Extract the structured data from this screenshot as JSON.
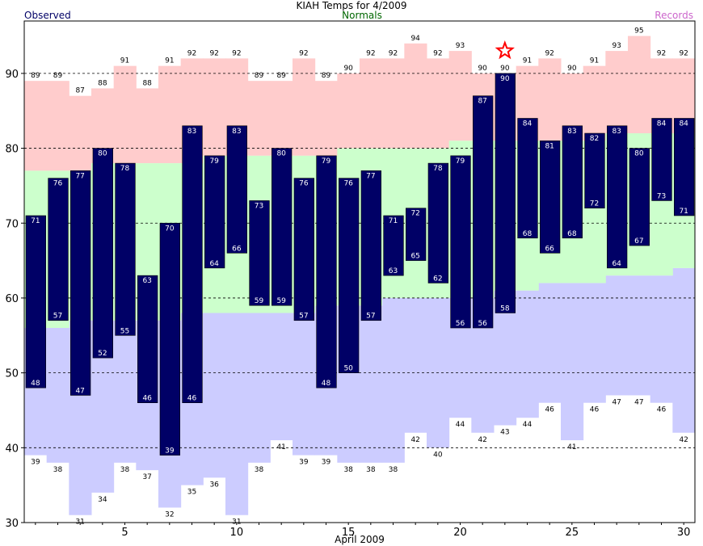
{
  "title": "KIAH Temps for 4/2009",
  "legend": {
    "observed": "Observed",
    "normals": "Normals",
    "records": "Records"
  },
  "colors": {
    "observed_bar": "#000066",
    "observed_text": "#000066",
    "normals_fill": "#ccffcc",
    "normals_text": "#006600",
    "record_high_fill": "#ffcccc",
    "record_low_fill": "#ccccff",
    "records_text": "#cc66cc",
    "star": "#ff0000"
  },
  "chart_data": {
    "type": "bar",
    "title": "KIAH Temps for 4/2009",
    "xlabel": "April 2009",
    "ylabel": "",
    "ylim": [
      30,
      97
    ],
    "xlim": [
      0.5,
      30.5
    ],
    "x_ticks": [
      5,
      10,
      15,
      20,
      25,
      30
    ],
    "y_ticks": [
      30,
      40,
      50,
      60,
      70,
      80,
      90
    ],
    "grid": "dashed horizontal lines at 40, 50, 60, 70, 80, 90",
    "days": [
      1,
      2,
      3,
      4,
      5,
      6,
      7,
      8,
      9,
      10,
      11,
      12,
      13,
      14,
      15,
      16,
      17,
      18,
      19,
      20,
      21,
      22,
      23,
      24,
      25,
      26,
      27,
      28,
      29,
      30
    ],
    "observed_high": [
      71,
      76,
      77,
      80,
      78,
      63,
      70,
      83,
      79,
      83,
      73,
      80,
      76,
      79,
      76,
      77,
      71,
      72,
      78,
      79,
      87,
      90,
      84,
      81,
      83,
      82,
      83,
      80,
      84,
      84
    ],
    "observed_low": [
      48,
      57,
      47,
      52,
      55,
      46,
      39,
      46,
      64,
      66,
      59,
      59,
      57,
      48,
      50,
      57,
      63,
      65,
      62,
      56,
      56,
      58,
      68,
      66,
      68,
      72,
      64,
      67,
      73,
      71
    ],
    "normal_high": [
      77,
      77,
      77,
      78,
      78,
      78,
      78,
      78,
      79,
      79,
      79,
      79,
      79,
      79,
      80,
      80,
      80,
      80,
      80,
      81,
      81,
      81,
      81,
      81,
      81,
      81,
      82,
      82,
      82,
      82
    ],
    "normal_low": [
      56,
      56,
      57,
      57,
      57,
      57,
      57,
      58,
      58,
      58,
      58,
      58,
      58,
      59,
      59,
      59,
      60,
      60,
      60,
      60,
      60,
      61,
      61,
      62,
      62,
      62,
      63,
      63,
      63,
      64
    ],
    "record_high": [
      89,
      89,
      87,
      88,
      91,
      88,
      91,
      92,
      92,
      92,
      89,
      89,
      92,
      89,
      90,
      92,
      92,
      94,
      92,
      93,
      90,
      90,
      91,
      92,
      90,
      91,
      93,
      95,
      92,
      92
    ],
    "record_low": [
      39,
      38,
      31,
      34,
      38,
      37,
      32,
      35,
      36,
      31,
      38,
      41,
      39,
      39,
      38,
      38,
      38,
      42,
      40,
      44,
      42,
      43,
      44,
      46,
      41,
      46,
      47,
      47,
      46,
      42
    ],
    "record_high_set_day": 22
  }
}
